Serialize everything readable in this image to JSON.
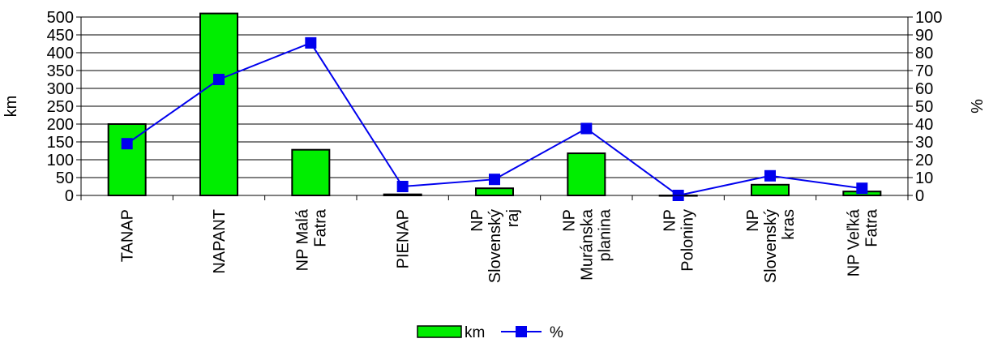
{
  "chart_data": {
    "type": "bar",
    "categories": [
      [
        "TANAP"
      ],
      [
        "NAPANT"
      ],
      [
        "NP Malá",
        "Fatra"
      ],
      [
        "PIENAP"
      ],
      [
        "NP",
        "Slovenský",
        "raj"
      ],
      [
        "NP",
        "Muránska",
        "planina"
      ],
      [
        "NP",
        "Poloniny"
      ],
      [
        "NP",
        "Slovenský",
        "kras"
      ],
      [
        "NP Veľká",
        "Fatra"
      ]
    ],
    "series": [
      {
        "name": "km",
        "type": "bar",
        "axis": "left",
        "color": "#00ee00",
        "values": [
          200,
          510,
          128,
          3,
          20,
          118,
          0,
          30,
          11
        ]
      },
      {
        "name": "%",
        "type": "line",
        "axis": "right",
        "color": "#0000ee",
        "values": [
          29,
          65,
          85.5,
          5,
          9,
          37.5,
          0,
          11,
          4
        ]
      }
    ],
    "ylabel": "km",
    "y2label": "%",
    "ylim": [
      0,
      500
    ],
    "y2lim": [
      0,
      100
    ],
    "yticks": [
      "0",
      "50",
      "100",
      "150",
      "200",
      "250",
      "300",
      "350",
      "400",
      "450",
      "500"
    ],
    "y2ticks": [
      "0",
      "10",
      "20",
      "30",
      "40",
      "50",
      "60",
      "70",
      "80",
      "90",
      "100"
    ],
    "grid": "horizontal",
    "legend": "bottom"
  }
}
